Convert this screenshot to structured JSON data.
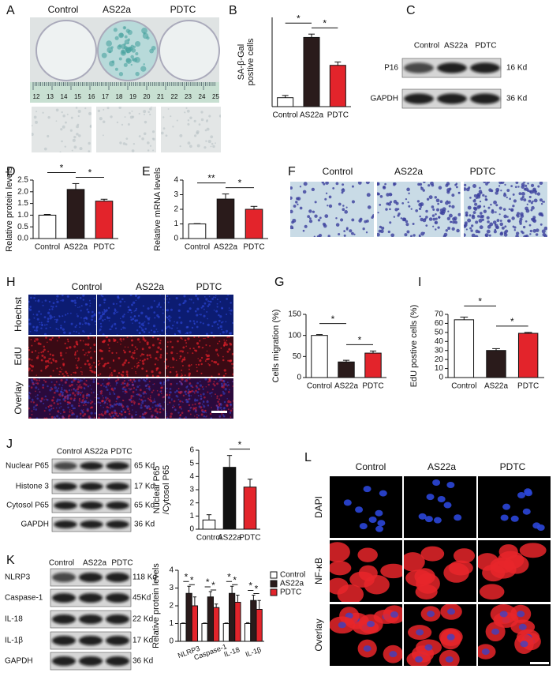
{
  "panels": {
    "A": {
      "label": "A",
      "columns": [
        "Control",
        "AS22a",
        "PDTC"
      ],
      "ruler": [
        12,
        13,
        14,
        15,
        16,
        17,
        18,
        19,
        20,
        21,
        22,
        23,
        24,
        25
      ]
    },
    "B": {
      "label": "B"
    },
    "C": {
      "label": "C",
      "columns": [
        "Control",
        "AS22a",
        "PDTC"
      ],
      "rows": [
        "P16",
        "GAPDH"
      ],
      "sizes": [
        "16 Kd",
        "36 Kd"
      ]
    },
    "D": {
      "label": "D"
    },
    "E": {
      "label": "E"
    },
    "F": {
      "label": "F",
      "columns": [
        "Control",
        "AS22a",
        "PDTC"
      ]
    },
    "G": {
      "label": "G"
    },
    "H": {
      "label": "H",
      "columns": [
        "Control",
        "AS22a",
        "PDTC"
      ],
      "rows": [
        "Hoechst",
        "EdU",
        "Overlay"
      ]
    },
    "I": {
      "label": "I"
    },
    "J": {
      "label": "J",
      "columns": [
        "Control",
        "AS22a",
        "PDTC"
      ],
      "rows": [
        "Nuclear P65",
        "Histone 3",
        "Cytosol P65",
        "GAPDH"
      ],
      "sizes": [
        "65 Kd",
        "17 Kd",
        "65 Kd",
        "36 Kd"
      ]
    },
    "K": {
      "label": "K",
      "columns": [
        "Control",
        "AS22a",
        "PDTC"
      ],
      "rows": [
        "NLRP3",
        "Caspase-1",
        "IL-18",
        "IL-1β",
        "GAPDH"
      ],
      "sizes": [
        "118 Kd",
        "45Kd",
        "22 Kd",
        "17 Kd",
        "36 Kd"
      ]
    },
    "L": {
      "label": "L",
      "columns": [
        "Control",
        "AS22a",
        "PDTC"
      ],
      "rows": [
        "DAPI",
        "NF-κB",
        "Overlay"
      ]
    }
  },
  "chart_data": [
    {
      "type": "bar",
      "ylabel": [
        "SA-β-Gal",
        "postive cells"
      ],
      "categories": [
        "Control",
        "AS22a",
        "PDTC"
      ],
      "values": [
        8,
        62,
        37
      ],
      "errors": [
        2,
        3,
        3
      ],
      "colors": [
        "#ffffff",
        "#2a1b1b",
        "#e3242b"
      ],
      "ylim": [
        0,
        80
      ],
      "annotations": [
        "*",
        "*"
      ]
    },
    {
      "type": "bar",
      "ylabel": "Relative protein levels",
      "categories": [
        "Control",
        "AS22a",
        "PDTC"
      ],
      "values": [
        1.0,
        2.1,
        1.6
      ],
      "errors": [
        0.03,
        0.25,
        0.08
      ],
      "colors": [
        "#ffffff",
        "#2a1b1b",
        "#e3242b"
      ],
      "ylim": [
        0,
        2.5
      ],
      "yticks": [
        {
          "value": 0,
          "label": "0.0"
        },
        0.5,
        {
          "value": 1,
          "label": "1.0"
        },
        1.5,
        {
          "value": 2,
          "label": "2.0"
        },
        2.5
      ],
      "annotations": [
        "*",
        "*"
      ]
    },
    {
      "type": "bar",
      "ylabel": "Relative mRNA levels",
      "categories": [
        "Control",
        "AS22a",
        "PDTC"
      ],
      "values": [
        1,
        2.7,
        2.0
      ],
      "errors": [
        0.02,
        0.35,
        0.2
      ],
      "colors": [
        "#ffffff",
        "#2a1b1b",
        "#e3242b"
      ],
      "ylim": [
        0,
        4
      ],
      "yticks": [
        0,
        1,
        2,
        3,
        4
      ],
      "annotations": [
        "**",
        "*"
      ]
    },
    {
      "type": "bar",
      "ylabel": "Cells migration (%)",
      "categories": [
        "Control",
        "AS22a",
        "PDTC"
      ],
      "values": [
        100,
        37,
        58
      ],
      "errors": [
        2,
        4,
        5
      ],
      "colors": [
        "#ffffff",
        "#2a1b1b",
        "#e3242b"
      ],
      "ylim": [
        0,
        150
      ],
      "yticks": [
        0,
        50,
        100,
        150
      ],
      "annotations": [
        "*",
        "*"
      ]
    },
    {
      "type": "bar",
      "ylabel": "EdU postive cells (%)",
      "categories": [
        "Control",
        "AS22a",
        "PDTC"
      ],
      "values": [
        64,
        30,
        49
      ],
      "errors": [
        3,
        2,
        1
      ],
      "colors": [
        "#ffffff",
        "#2a1b1b",
        "#e3242b"
      ],
      "ylim": [
        0,
        70
      ],
      "yticks": [
        0,
        10,
        20,
        30,
        40,
        50,
        60,
        70
      ],
      "annotations": [
        "*",
        "*"
      ]
    },
    {
      "type": "bar",
      "ylabel": [
        "Nuclear P65",
        "/Cytosol P65"
      ],
      "categories": [
        "Control",
        "AS22a",
        "PDTC"
      ],
      "values": [
        0.7,
        4.7,
        3.2
      ],
      "errors": [
        0.4,
        0.9,
        0.6
      ],
      "colors": [
        "#ffffff",
        "#111111",
        "#e3242b"
      ],
      "ylim": [
        0,
        6
      ],
      "yticks": [
        0,
        1,
        2,
        3,
        4,
        5,
        6
      ],
      "annotations": [
        "*"
      ]
    },
    {
      "type": "grouped_bar",
      "ylabel": "Relative protein levels",
      "categories": [
        "NLRP3",
        "Caspase-1",
        "IL-18",
        "IL-1β"
      ],
      "series": [
        {
          "name": "Control",
          "color": "#ffffff",
          "values": [
            1,
            1,
            1,
            1
          ],
          "errors": [
            0.03,
            0.03,
            0.03,
            0.05
          ]
        },
        {
          "name": "AS22a",
          "color": "#2a1b1b",
          "values": [
            2.7,
            2.5,
            2.7,
            2.3
          ],
          "errors": [
            0.4,
            0.3,
            0.4,
            0.3
          ]
        },
        {
          "name": "PDTC",
          "color": "#e3242b",
          "values": [
            2.0,
            1.9,
            2.2,
            1.8
          ],
          "errors": [
            0.5,
            0.2,
            0.4,
            0.5
          ]
        }
      ],
      "ylim": [
        0,
        4
      ],
      "yticks": [
        0,
        1,
        2,
        3,
        4
      ],
      "annotations": [
        "*",
        "*",
        "*",
        "*",
        "*",
        "*",
        "*",
        "*"
      ],
      "legend": "top-right"
    }
  ]
}
